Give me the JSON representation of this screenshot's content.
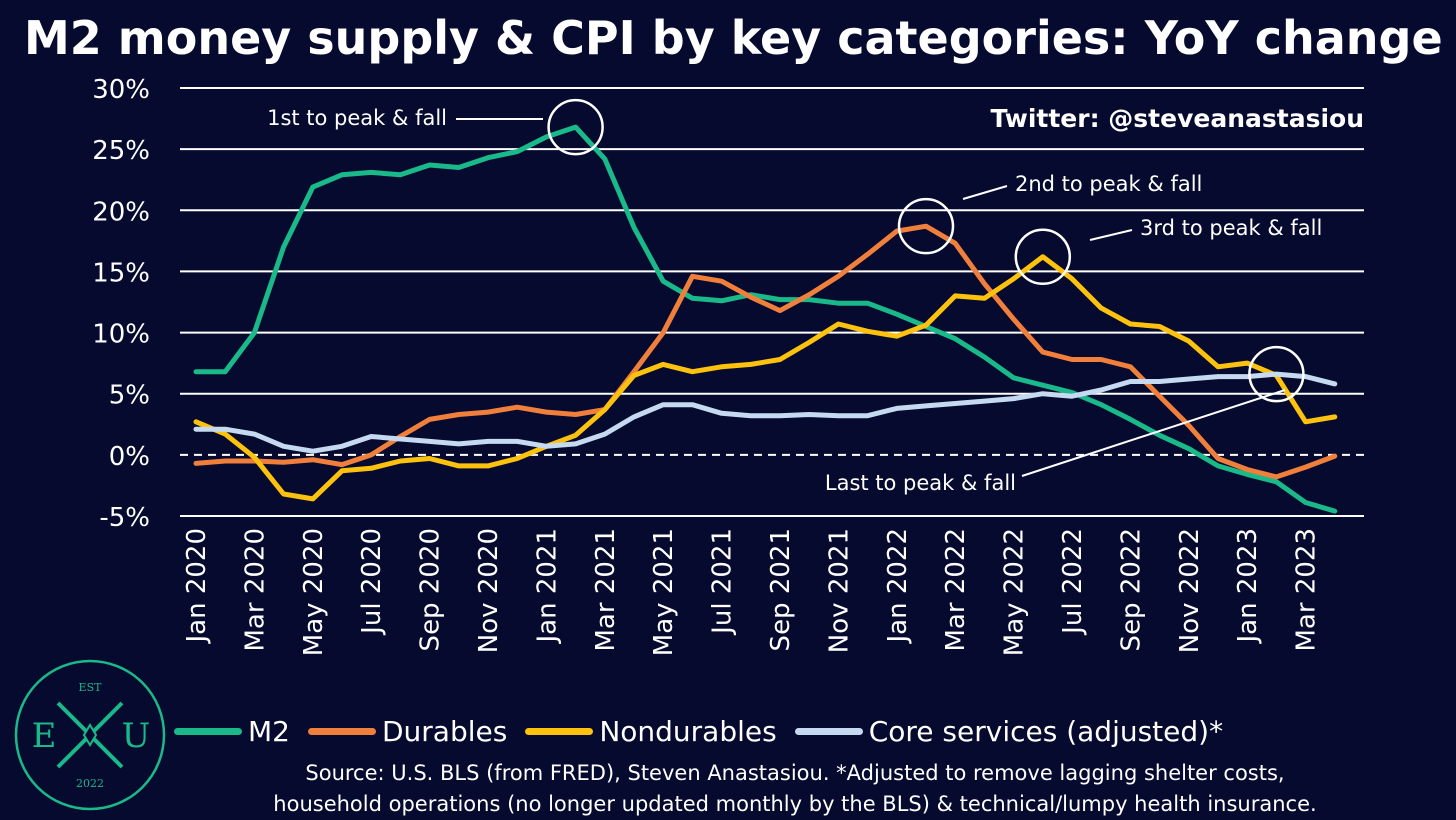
{
  "title": "M2 money supply & CPI by key categories: YoY change",
  "twitter": "Twitter: @steveanastasiou",
  "source_line1": "Source: U.S. BLS (from FRED), Steven Anastasiou. *Adjusted to remove lagging shelter costs,",
  "source_line2": "household operations (no longer updated monthly by the BLS) & technical/lumpy health insurance.",
  "logo": {
    "top": "EST",
    "left": "E",
    "right": "U",
    "bottom": "2022"
  },
  "colors": {
    "background": "#050a2e",
    "m2": "#19b98a",
    "durables": "#f07f3c",
    "nondurables": "#fdc20e",
    "core": "#c5d9f0",
    "grid": "#ffffff"
  },
  "chart_data": {
    "type": "line",
    "title": "M2 money supply & CPI by key categories: YoY change",
    "xlabel": "",
    "ylabel": "",
    "ylim": [
      -5,
      30
    ],
    "yticks": [
      "30%",
      "25%",
      "20%",
      "15%",
      "10%",
      "5%",
      "0%",
      "-5%"
    ],
    "ytick_values": [
      30,
      25,
      20,
      15,
      10,
      5,
      0,
      -5
    ],
    "grid": true,
    "legend_position": "bottom",
    "x": [
      "Jan 2020",
      "Feb 2020",
      "Mar 2020",
      "Apr 2020",
      "May 2020",
      "Jun 2020",
      "Jul 2020",
      "Aug 2020",
      "Sep 2020",
      "Oct 2020",
      "Nov 2020",
      "Dec 2020",
      "Jan 2021",
      "Feb 2021",
      "Mar 2021",
      "Apr 2021",
      "May 2021",
      "Jun 2021",
      "Jul 2021",
      "Aug 2021",
      "Sep 2021",
      "Oct 2021",
      "Nov 2021",
      "Dec 2021",
      "Jan 2022",
      "Feb 2022",
      "Mar 2022",
      "Apr 2022",
      "May 2022",
      "Jun 2022",
      "Jul 2022",
      "Aug 2022",
      "Sep 2022",
      "Oct 2022",
      "Nov 2022",
      "Dec 2022",
      "Jan 2023",
      "Feb 2023",
      "Mar 2023",
      "Apr 2023"
    ],
    "x_tick_labels": [
      "Jan 2020",
      "Mar 2020",
      "May 2020",
      "Jul 2020",
      "Sep 2020",
      "Nov 2020",
      "Jan 2021",
      "Mar 2021",
      "May 2021",
      "Jul 2021",
      "Sep 2021",
      "Nov 2021",
      "Jan 2022",
      "Mar 2022",
      "May 2022",
      "Jul 2022",
      "Sep 2022",
      "Nov 2022",
      "Jan 2023",
      "Mar 2023"
    ],
    "series": [
      {
        "name": "M2",
        "color": "#19b98a",
        "values": [
          6.8,
          6.8,
          10.0,
          17.0,
          21.9,
          22.9,
          23.1,
          22.9,
          23.7,
          23.5,
          24.3,
          24.8,
          26.0,
          26.8,
          24.2,
          18.6,
          14.2,
          12.8,
          12.6,
          13.1,
          12.7,
          12.7,
          12.4,
          12.4,
          11.5,
          10.5,
          9.5,
          8.0,
          6.3,
          5.7,
          5.1,
          4.1,
          2.9,
          1.6,
          0.5,
          -0.9,
          -1.6,
          -2.2,
          -3.9,
          -4.6
        ]
      },
      {
        "name": "Durables",
        "color": "#f07f3c",
        "values": [
          -0.7,
          -0.5,
          -0.5,
          -0.6,
          -0.4,
          -0.8,
          0.0,
          1.5,
          2.9,
          3.3,
          3.5,
          3.9,
          3.5,
          3.3,
          3.7,
          6.8,
          10.0,
          14.6,
          14.2,
          12.9,
          11.8,
          13.1,
          14.6,
          16.4,
          18.3,
          18.7,
          17.3,
          14.0,
          11.1,
          8.4,
          7.8,
          7.8,
          7.2,
          4.8,
          2.4,
          -0.3,
          -1.2,
          -1.8,
          -1.0,
          -0.1
        ]
      },
      {
        "name": "Nondurables",
        "color": "#fdc20e",
        "values": [
          2.7,
          1.7,
          -0.2,
          -3.2,
          -3.6,
          -1.3,
          -1.1,
          -0.5,
          -0.3,
          -0.9,
          -0.9,
          -0.3,
          0.7,
          1.6,
          3.7,
          6.5,
          7.4,
          6.8,
          7.2,
          7.4,
          7.8,
          9.2,
          10.7,
          10.1,
          9.7,
          10.6,
          13.0,
          12.8,
          14.4,
          16.2,
          14.4,
          12.0,
          10.7,
          10.5,
          9.3,
          7.2,
          7.5,
          6.5,
          2.7,
          3.1
        ]
      },
      {
        "name": "Core services (adjusted)*",
        "color": "#c5d9f0",
        "values": [
          2.1,
          2.1,
          1.7,
          0.7,
          0.3,
          0.7,
          1.5,
          1.3,
          1.1,
          0.9,
          1.1,
          1.1,
          0.7,
          0.9,
          1.7,
          3.1,
          4.1,
          4.1,
          3.4,
          3.2,
          3.2,
          3.3,
          3.2,
          3.2,
          3.8,
          4.0,
          4.2,
          4.4,
          4.6,
          5.0,
          4.8,
          5.3,
          6.0,
          6.0,
          6.2,
          6.4,
          6.4,
          6.6,
          6.4,
          5.8
        ]
      }
    ],
    "annotations": [
      {
        "text": "1st to peak & fall",
        "series": "M2",
        "x": "Feb 2021",
        "y": 26.8
      },
      {
        "text": "2nd to peak & fall",
        "series": "Durables",
        "x": "Feb 2022",
        "y": 18.7
      },
      {
        "text": "3rd to peak & fall",
        "series": "Nondurables",
        "x": "Jun 2022",
        "y": 16.2
      },
      {
        "text": "Last to peak & fall",
        "series": "Core services (adjusted)*",
        "x": "Feb 2023",
        "y": 6.6
      }
    ]
  }
}
